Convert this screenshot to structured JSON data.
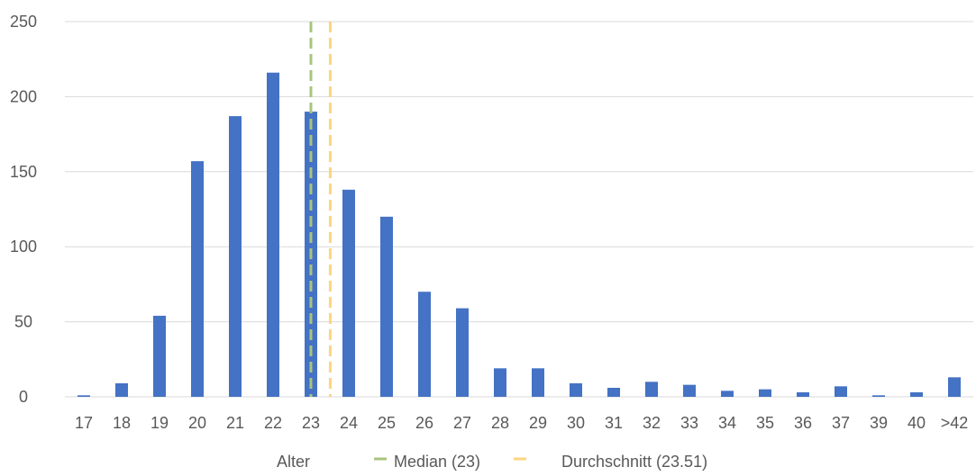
{
  "chart_data": {
    "type": "bar",
    "title": "",
    "xlabel": "",
    "ylabel": "",
    "categories": [
      "17",
      "18",
      "19",
      "20",
      "21",
      "22",
      "23",
      "24",
      "25",
      "26",
      "27",
      "28",
      "29",
      "30",
      "31",
      "32",
      "33",
      "34",
      "35",
      "36",
      "37",
      "39",
      "40",
      ">42"
    ],
    "series": [
      {
        "name": "Alter",
        "color": "#4472c4",
        "values": [
          1,
          9,
          54,
          157,
          187,
          216,
          190,
          138,
          120,
          70,
          59,
          19,
          19,
          9,
          6,
          10,
          8,
          4,
          5,
          3,
          7,
          1,
          3,
          13
        ]
      }
    ],
    "reference_lines": [
      {
        "name": "Median (23)",
        "x_value": 23,
        "color": "#a9c47f",
        "style": "dashed"
      },
      {
        "name": "Durchschnitt (23.51)",
        "x_value": 23.51,
        "color": "#ffd47f",
        "style": "dashed"
      }
    ],
    "ylim": [
      0,
      250
    ],
    "yticks": [
      0,
      50,
      100,
      150,
      200,
      250
    ],
    "grid": true,
    "legend": "bottom-center"
  }
}
